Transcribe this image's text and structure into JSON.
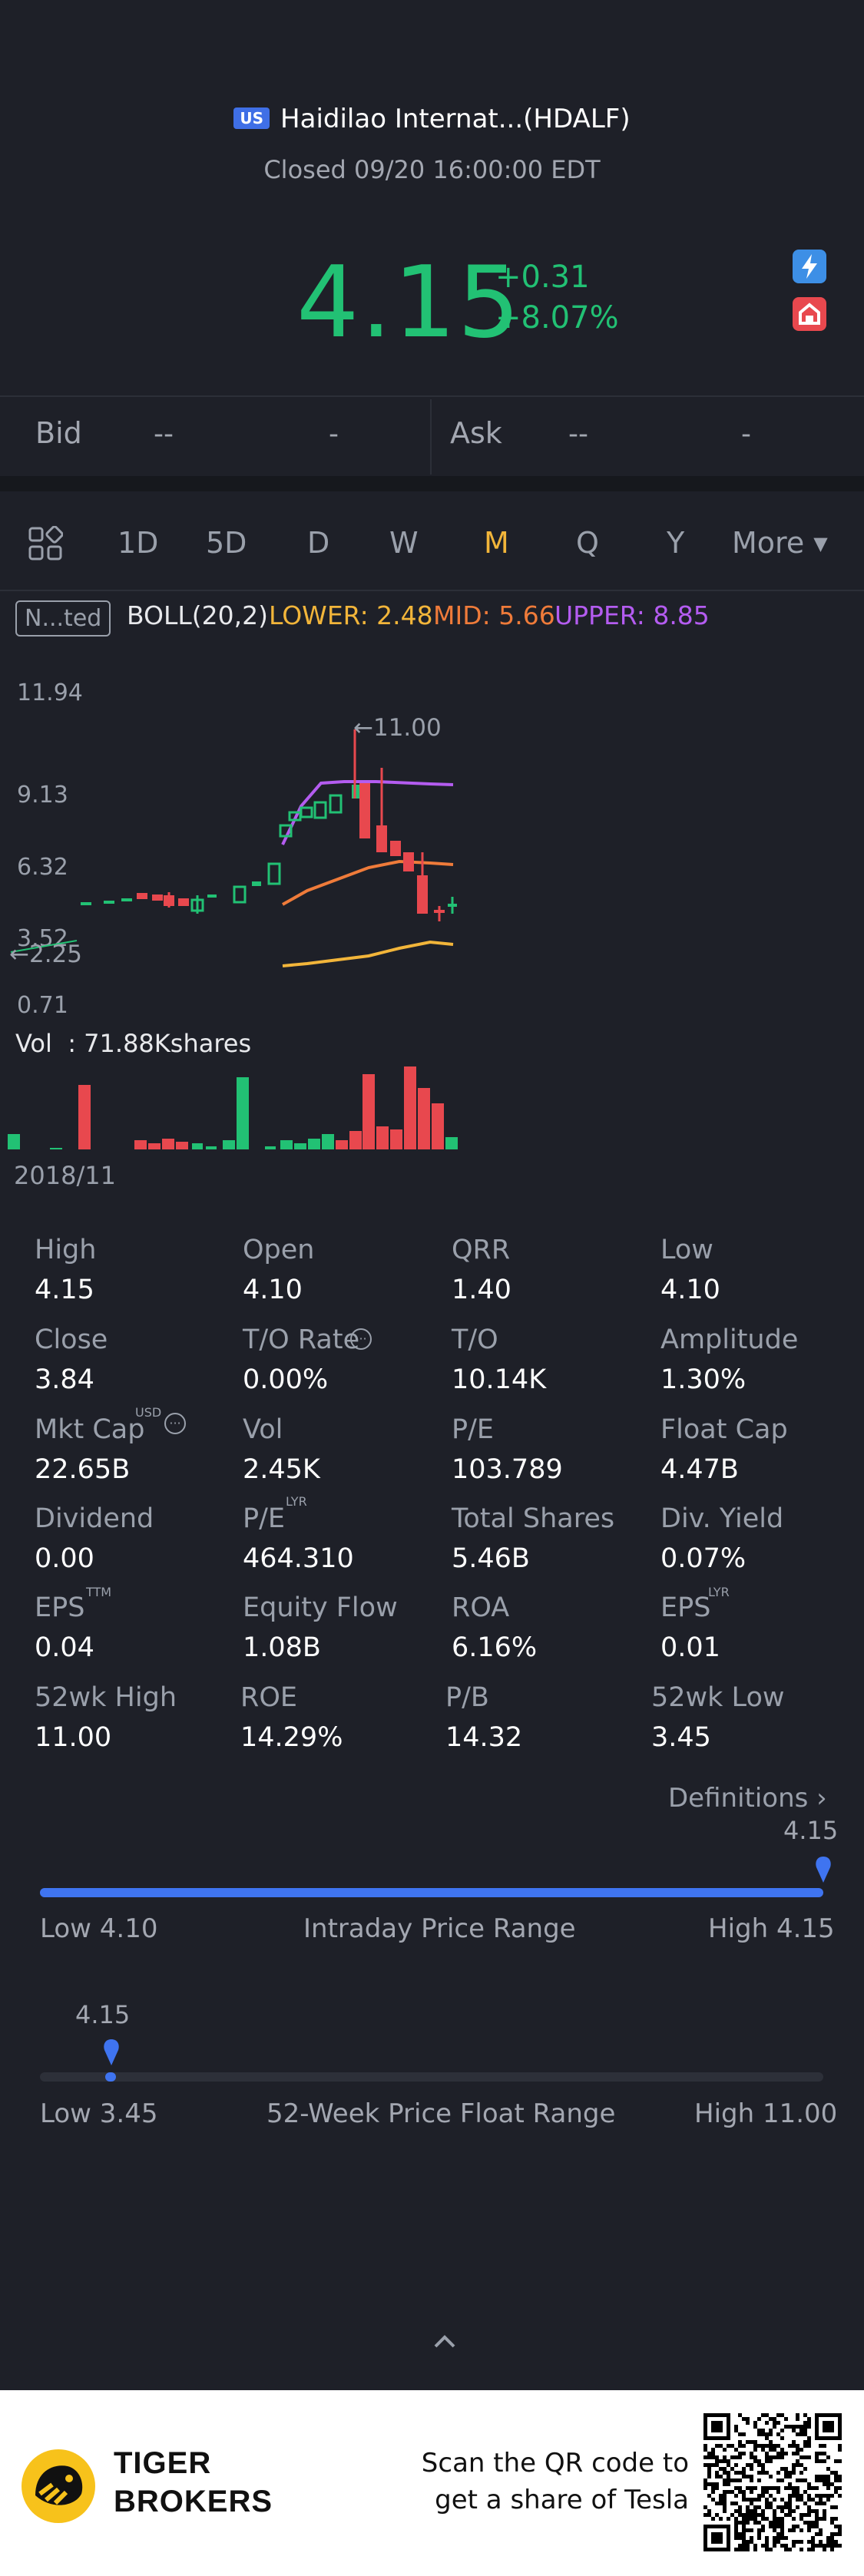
{
  "header": {
    "market_badge": "US",
    "title": "Haidilao Internat...(HDALF)",
    "status": "Closed 09/20 16:00:00 EDT",
    "price": "4.15",
    "change": "+0.31",
    "change_pct": "+8.07%",
    "colors": {
      "up": "#22c174",
      "down": "#e8484e",
      "accent": "#f2b53a",
      "blue": "#3f74f0"
    },
    "icons": [
      "bolt-icon",
      "store-icon"
    ]
  },
  "quote": {
    "bid_label": "Bid",
    "bid_price": "--",
    "bid_size": "-",
    "ask_label": "Ask",
    "ask_price": "--",
    "ask_size": "-"
  },
  "tabs": {
    "items": [
      "1D",
      "5D",
      "D",
      "W",
      "M",
      "Q",
      "Y"
    ],
    "active": "M",
    "more_label": "More"
  },
  "indicator": {
    "selector": "N...ted",
    "name": "BOLL(20,2)",
    "lower": "LOWER: 2.48",
    "mid": "MID: 5.66",
    "upper": "UPPER: 8.85"
  },
  "chart_data": {
    "type": "candlestick",
    "y_ticks": [
      "11.94",
      "9.13",
      "6.32",
      "3.52",
      "0.71"
    ],
    "max_label": "11.00",
    "min_label": "2.25",
    "vol_label": "Vol  : 71.88Kshares",
    "start_date": "2018/11"
  },
  "stats": [
    {
      "name": "High",
      "value": "4.15"
    },
    {
      "name": "Open",
      "value": "4.10"
    },
    {
      "name": "QRR",
      "value": "1.40"
    },
    {
      "name": "Low",
      "value": "4.10"
    },
    {
      "name": "Close",
      "value": "3.84"
    },
    {
      "name": "T/O Rate",
      "value": "0.00%"
    },
    {
      "name": "T/O",
      "value": "10.14K"
    },
    {
      "name": "Amplitude",
      "value": "1.30%"
    },
    {
      "name": "Mkt Cap",
      "value": "22.65B"
    },
    {
      "name": "Vol",
      "value": "2.45K"
    },
    {
      "name": "P/E",
      "value": "103.789"
    },
    {
      "name": "Float Cap",
      "value": "4.47B"
    },
    {
      "name": "Dividend",
      "value": "0.00"
    },
    {
      "name": "P/E",
      "value": "464.310"
    },
    {
      "name": "Total Shares",
      "value": "5.46B"
    },
    {
      "name": "Div. Yield",
      "value": "0.07%"
    },
    {
      "name": "EPS",
      "value": "0.04"
    },
    {
      "name": "Equity Flow",
      "value": "1.08B"
    },
    {
      "name": "ROA",
      "value": "6.16%"
    },
    {
      "name": "EPS",
      "value": "0.01"
    },
    {
      "name": "52wk High",
      "value": "11.00"
    },
    {
      "name": "ROE",
      "value": "14.29%"
    },
    {
      "name": "P/B",
      "value": "14.32"
    },
    {
      "name": "52wk Low",
      "value": "3.45"
    }
  ],
  "superscripts": {
    "usd": "USD",
    "lyr": "LYR",
    "ttm": "TTM",
    "lyr2": "LYR"
  },
  "definitions_label": "Definitions",
  "intraday": {
    "current": "4.15",
    "low": "Low 4.10",
    "title": "Intraday Price Range",
    "high": "High 4.15",
    "fraction": 1.0
  },
  "week52": {
    "current": "4.15",
    "low": "Low 3.45",
    "title": "52-Week Price Float Range",
    "high": "High 11.00",
    "fraction": 0.09
  },
  "footer": {
    "brand_line1": "TIGER",
    "brand_line2": "BROKERS",
    "promo_line1": "Scan the QR code to",
    "promo_line2": "get a share of Tesla"
  }
}
